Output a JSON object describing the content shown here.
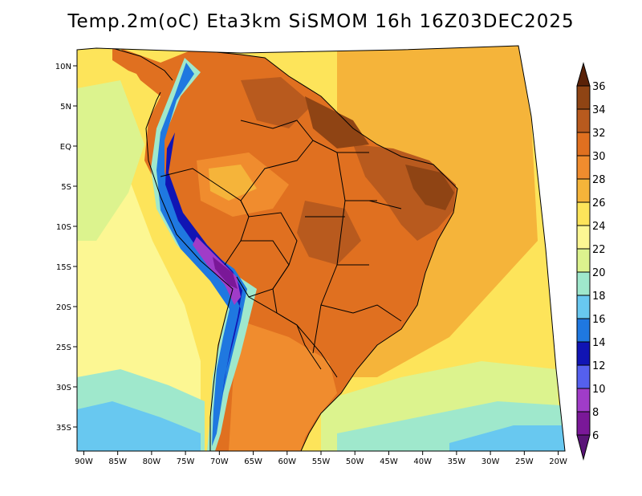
{
  "title": "Temp.2m(oC) Eta3km SiSMOM 16h 16Z03DEC2025",
  "map": {
    "lon_range": [
      -91,
      -19
    ],
    "lat_range": [
      -38,
      12
    ],
    "lon_ticks": [
      {
        "value": -90,
        "label": "90W"
      },
      {
        "value": -85,
        "label": "85W"
      },
      {
        "value": -80,
        "label": "80W"
      },
      {
        "value": -75,
        "label": "75W"
      },
      {
        "value": -70,
        "label": "70W"
      },
      {
        "value": -65,
        "label": "65W"
      },
      {
        "value": -60,
        "label": "60W"
      },
      {
        "value": -55,
        "label": "55W"
      },
      {
        "value": -50,
        "label": "50W"
      },
      {
        "value": -45,
        "label": "45W"
      },
      {
        "value": -40,
        "label": "40W"
      },
      {
        "value": -35,
        "label": "35W"
      },
      {
        "value": -30,
        "label": "30W"
      },
      {
        "value": -25,
        "label": "25W"
      },
      {
        "value": -20,
        "label": "20W"
      }
    ],
    "lat_ticks": [
      {
        "value": 10,
        "label": "10N"
      },
      {
        "value": 5,
        "label": "5N"
      },
      {
        "value": 0,
        "label": "EQ"
      },
      {
        "value": -5,
        "label": "5S"
      },
      {
        "value": -10,
        "label": "10S"
      },
      {
        "value": -15,
        "label": "15S"
      },
      {
        "value": -20,
        "label": "20S"
      },
      {
        "value": -25,
        "label": "25S"
      },
      {
        "value": -30,
        "label": "30S"
      },
      {
        "value": -35,
        "label": "35S"
      }
    ]
  },
  "colorbar": {
    "levels": [
      {
        "label": "36",
        "color": "#6b3010"
      },
      {
        "label": "34",
        "color": "#8f4414"
      },
      {
        "label": "32",
        "color": "#b85a1e"
      },
      {
        "label": "30",
        "color": "#e07020"
      },
      {
        "label": "28",
        "color": "#f08c2e"
      },
      {
        "label": "26",
        "color": "#f5b43a"
      },
      {
        "label": "24",
        "color": "#fde45a"
      },
      {
        "label": "22",
        "color": "#fcf793"
      },
      {
        "label": "20",
        "color": "#dcf38e"
      },
      {
        "label": "18",
        "color": "#9fe8cc"
      },
      {
        "label": "16",
        "color": "#68c8f0"
      },
      {
        "label": "14",
        "color": "#1f78e0"
      },
      {
        "label": "12",
        "color": "#1014b4"
      },
      {
        "label": "10",
        "color": "#5560ee"
      },
      {
        "label": "8",
        "color": "#a03cc8"
      },
      {
        "label": "6",
        "color": "#7a1898"
      }
    ],
    "top_color": "#5a2208",
    "bottom_color": "#5a1478"
  },
  "colors": {
    "ocean_north": "#fde45a",
    "ocean_south_cool": "#9fe8cc",
    "land_hot": "#e07020",
    "land_very_hot": "#b85a1e",
    "andes_cold": "#1014b4"
  }
}
